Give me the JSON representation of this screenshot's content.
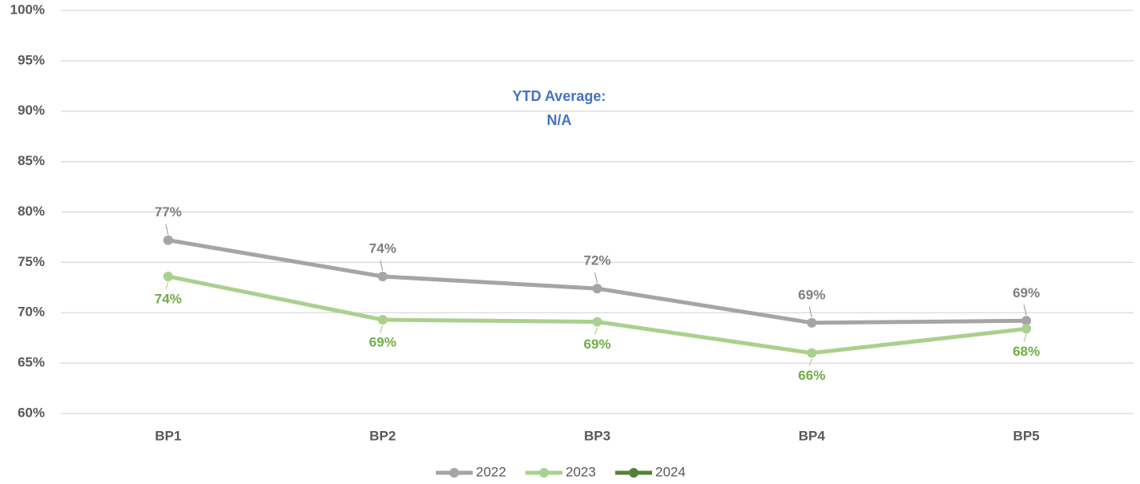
{
  "chart_data": {
    "type": "line",
    "annotation": [
      "YTD Average:",
      "N/A"
    ],
    "categories": [
      "BP1",
      "BP2",
      "BP3",
      "BP4",
      "BP5"
    ],
    "series": [
      {
        "name": "2022",
        "color": "#a5a5a5",
        "label_color": "#7f7f7f",
        "label_position": "above",
        "values": [
          77.2,
          73.6,
          72.4,
          69.0,
          69.2
        ],
        "value_labels": [
          "77%",
          "74%",
          "72%",
          "69%",
          "69%"
        ]
      },
      {
        "name": "2023",
        "color": "#a9d18e",
        "label_color": "#70ad47",
        "label_position": "below",
        "values": [
          73.6,
          69.3,
          69.1,
          66.0,
          68.4
        ],
        "value_labels": [
          "74%",
          "69%",
          "69%",
          "66%",
          "68%"
        ]
      },
      {
        "name": "2024",
        "color": "#548235",
        "values": [
          null,
          null,
          null,
          null,
          null
        ]
      }
    ],
    "ylim": [
      60,
      100
    ],
    "yticks": [
      {
        "value": 60,
        "label": "60%"
      },
      {
        "value": 65,
        "label": "65%"
      },
      {
        "value": 70,
        "label": "70%"
      },
      {
        "value": 75,
        "label": "75%"
      },
      {
        "value": 80,
        "label": "80%"
      },
      {
        "value": 85,
        "label": "85%"
      },
      {
        "value": 90,
        "label": "90%"
      },
      {
        "value": 95,
        "label": "95%"
      },
      {
        "value": 100,
        "label": "100%"
      }
    ],
    "grid": true,
    "legend": "bottom"
  }
}
